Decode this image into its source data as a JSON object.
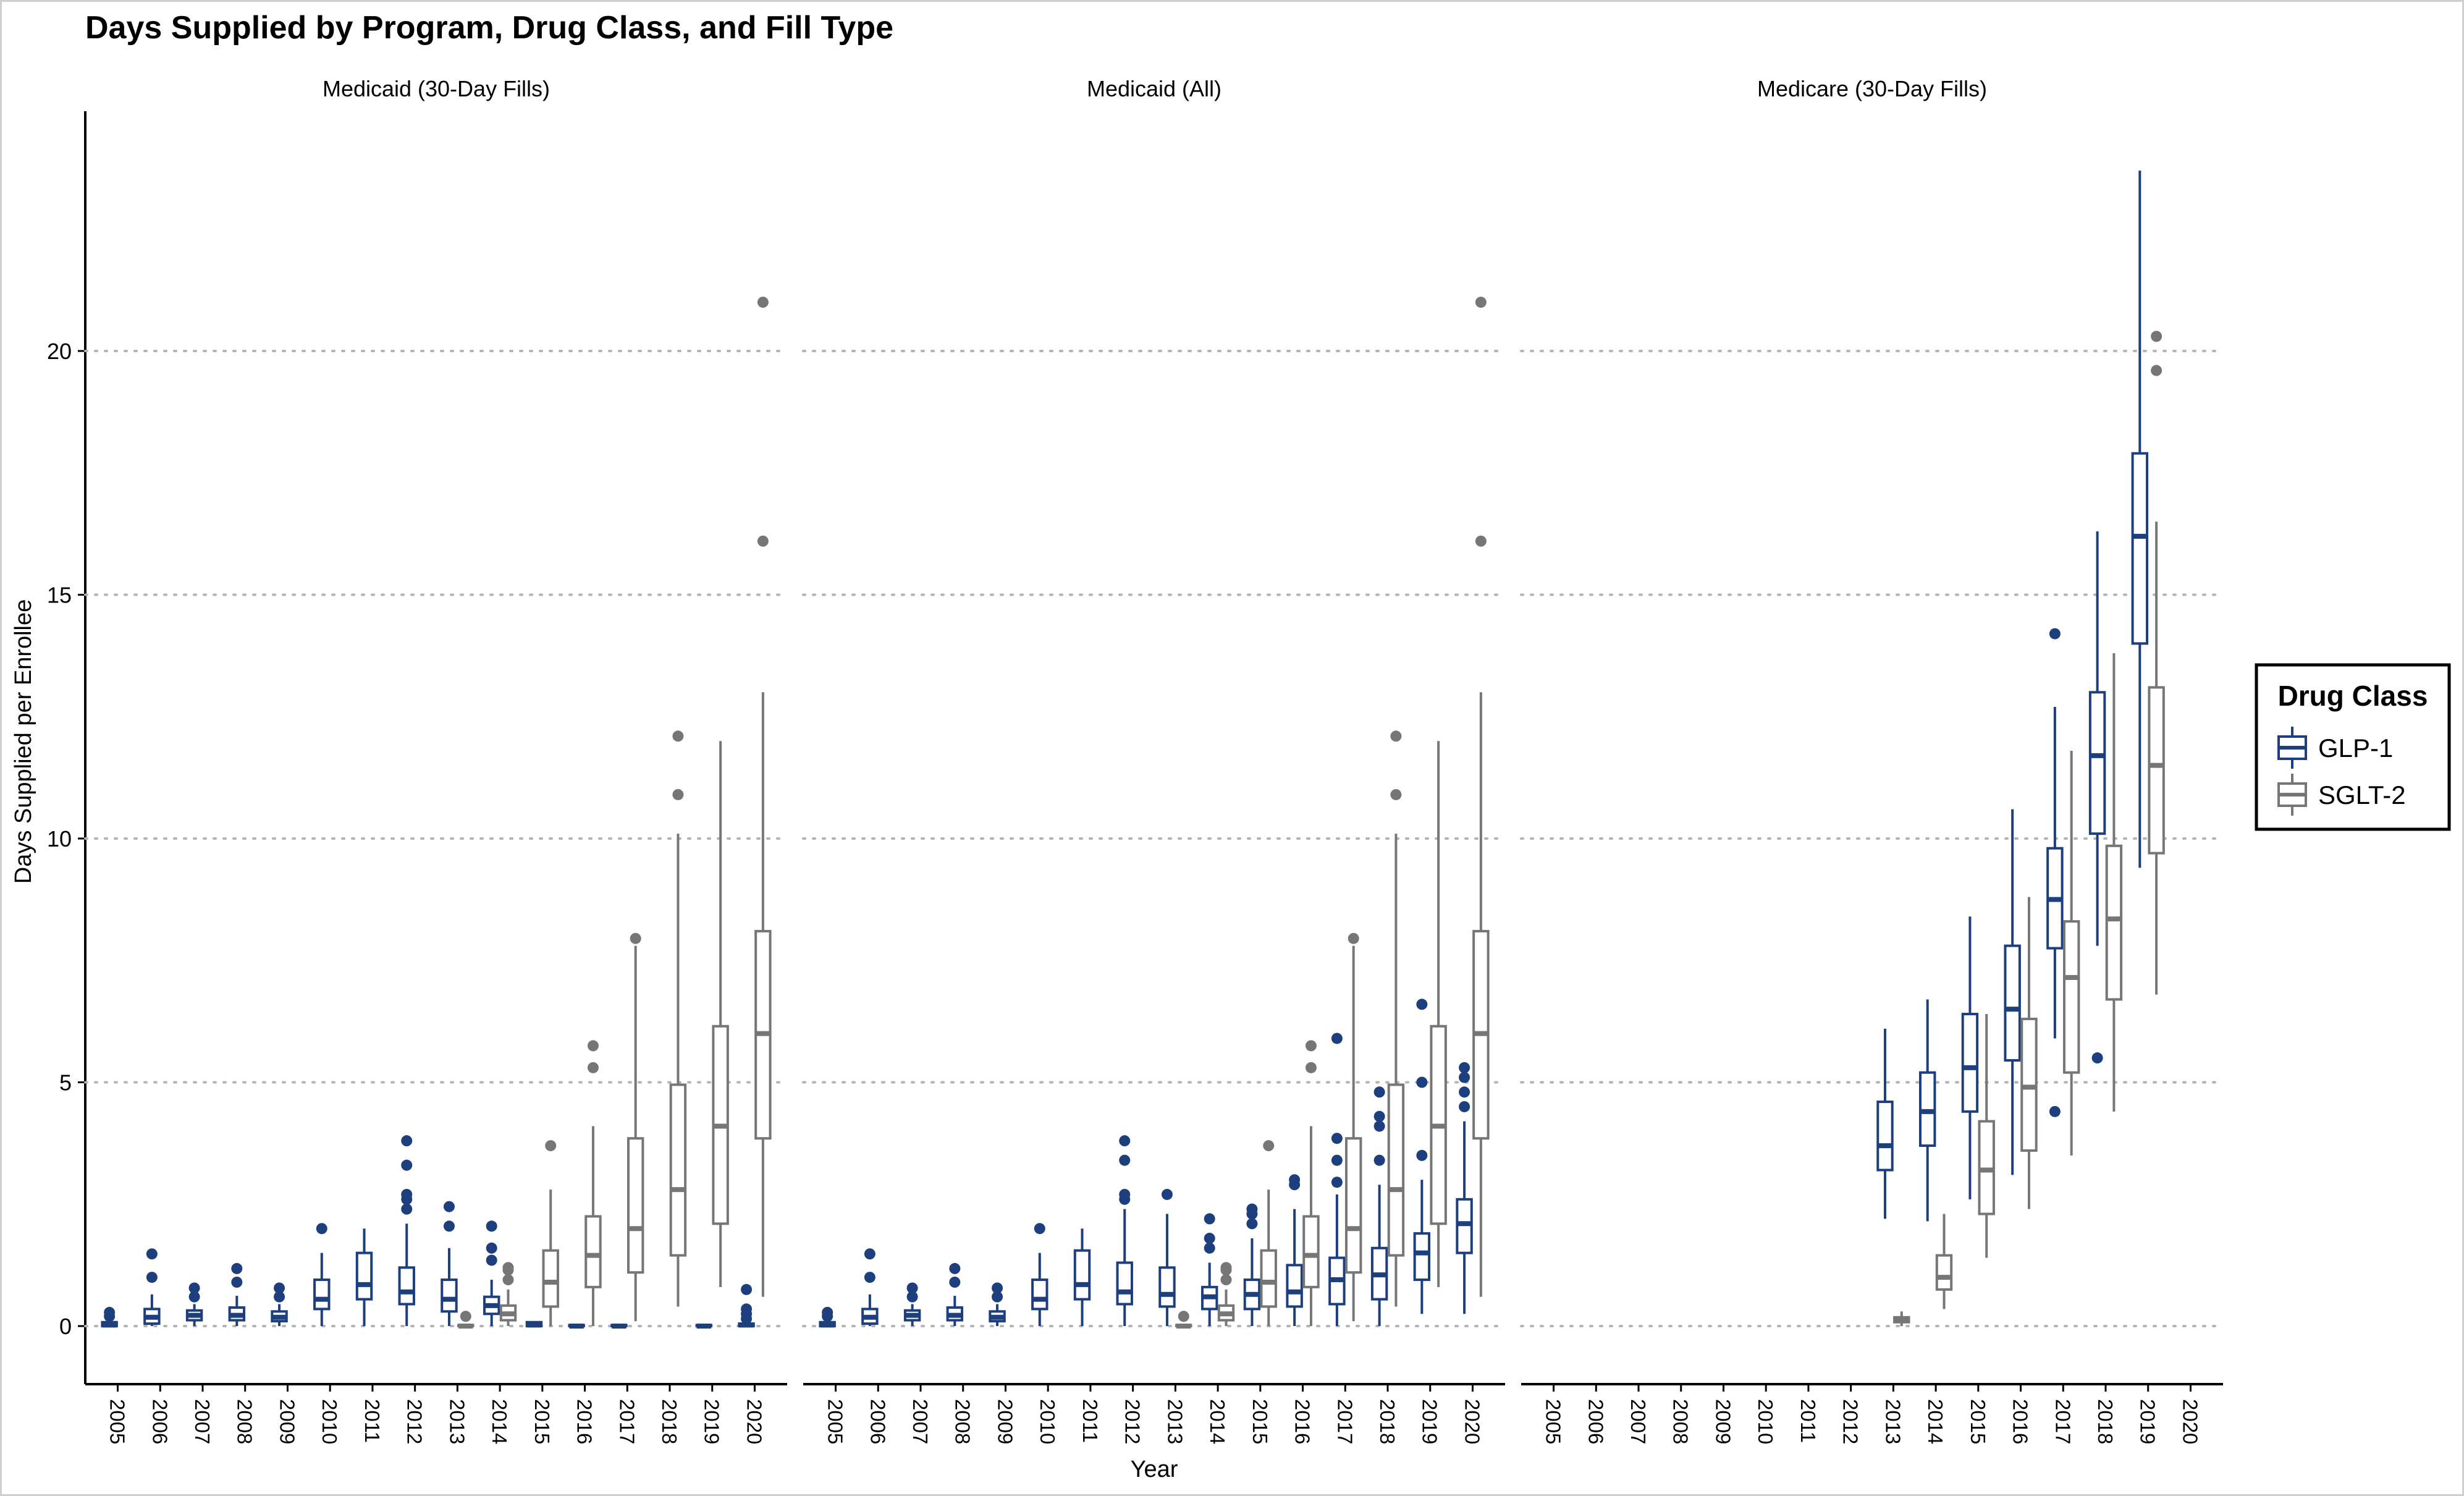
{
  "chart_data": {
    "type": "boxplot",
    "title": "Days Supplied by Program, Drug Class, and Fill Type",
    "xlabel": "Year",
    "ylabel": "Days Supplied per Enrollee",
    "ylim": [
      -1.2,
      24.9
    ],
    "yticks": [
      0,
      5,
      10,
      15,
      20
    ],
    "grid": "horizontal dotted",
    "legend": {
      "title": "Drug Class",
      "position": "right",
      "entries": [
        {
          "name": "GLP-1",
          "color": "#1d3f7e"
        },
        {
          "name": "SGLT-2",
          "color": "#767676"
        }
      ]
    },
    "years": [
      "2005",
      "2006",
      "2007",
      "2008",
      "2009",
      "2010",
      "2011",
      "2012",
      "2013",
      "2014",
      "2015",
      "2016",
      "2017",
      "2018",
      "2019",
      "2020"
    ],
    "panels": [
      {
        "title": "Medicaid (30-Day Fills)",
        "boxes": [
          {
            "year": "2005",
            "class": "GLP-1",
            "q1": 0.0,
            "median": 0.02,
            "q3": 0.08,
            "lo": 0.0,
            "hi": 0.12,
            "outliers": [
              0.2,
              0.28
            ]
          },
          {
            "year": "2006",
            "class": "GLP-1",
            "q1": 0.05,
            "median": 0.18,
            "q3": 0.35,
            "lo": 0.0,
            "hi": 0.65,
            "outliers": [
              1.0,
              1.48
            ]
          },
          {
            "year": "2007",
            "class": "GLP-1",
            "q1": 0.12,
            "median": 0.22,
            "q3": 0.32,
            "lo": 0.0,
            "hi": 0.45,
            "outliers": [
              0.6,
              0.78
            ]
          },
          {
            "year": "2008",
            "class": "GLP-1",
            "q1": 0.12,
            "median": 0.22,
            "q3": 0.38,
            "lo": 0.0,
            "hi": 0.62,
            "outliers": [
              0.9,
              1.18
            ]
          },
          {
            "year": "2009",
            "class": "GLP-1",
            "q1": 0.1,
            "median": 0.18,
            "q3": 0.3,
            "lo": 0.0,
            "hi": 0.45,
            "outliers": [
              0.6,
              0.78
            ]
          },
          {
            "year": "2010",
            "class": "GLP-1",
            "q1": 0.35,
            "median": 0.55,
            "q3": 0.95,
            "lo": 0.0,
            "hi": 1.5,
            "outliers": [
              2.0
            ]
          },
          {
            "year": "2011",
            "class": "GLP-1",
            "q1": 0.55,
            "median": 0.85,
            "q3": 1.5,
            "lo": 0.0,
            "hi": 2.0,
            "outliers": []
          },
          {
            "year": "2012",
            "class": "GLP-1",
            "q1": 0.45,
            "median": 0.7,
            "q3": 1.2,
            "lo": 0.0,
            "hi": 2.1,
            "outliers": [
              2.4,
              2.6,
              2.7,
              3.3,
              3.8
            ]
          },
          {
            "year": "2013",
            "class": "GLP-1",
            "q1": 0.3,
            "median": 0.55,
            "q3": 0.95,
            "lo": 0.0,
            "hi": 1.6,
            "outliers": [
              2.05,
              2.45
            ]
          },
          {
            "year": "2013",
            "class": "SGLT-2",
            "q1": 0.0,
            "median": 0.0,
            "q3": 0.02,
            "lo": 0.0,
            "hi": 0.05,
            "outliers": [
              0.2
            ]
          },
          {
            "year": "2014",
            "class": "GLP-1",
            "q1": 0.25,
            "median": 0.42,
            "q3": 0.6,
            "lo": 0.0,
            "hi": 0.95,
            "outliers": [
              1.35,
              1.6,
              2.05
            ]
          },
          {
            "year": "2014",
            "class": "SGLT-2",
            "q1": 0.12,
            "median": 0.25,
            "q3": 0.42,
            "lo": 0.0,
            "hi": 0.75,
            "outliers": [
              0.95,
              1.15,
              1.2
            ]
          },
          {
            "year": "2015",
            "class": "GLP-1",
            "q1": 0.0,
            "median": 0.02,
            "q3": 0.08,
            "lo": 0.0,
            "hi": 0.1,
            "outliers": []
          },
          {
            "year": "2015",
            "class": "SGLT-2",
            "q1": 0.4,
            "median": 0.9,
            "q3": 1.55,
            "lo": 0.0,
            "hi": 2.8,
            "outliers": [
              3.7
            ]
          },
          {
            "year": "2016",
            "class": "GLP-1",
            "q1": 0.0,
            "median": 0.0,
            "q3": 0.02,
            "lo": 0.0,
            "hi": 0.03,
            "outliers": []
          },
          {
            "year": "2016",
            "class": "SGLT-2",
            "q1": 0.8,
            "median": 1.45,
            "q3": 2.25,
            "lo": 0.0,
            "hi": 4.1,
            "outliers": [
              5.3,
              5.75
            ]
          },
          {
            "year": "2017",
            "class": "GLP-1",
            "q1": 0.0,
            "median": 0.0,
            "q3": 0.02,
            "lo": 0.0,
            "hi": 0.03,
            "outliers": []
          },
          {
            "year": "2017",
            "class": "SGLT-2",
            "q1": 1.1,
            "median": 2.0,
            "q3": 3.85,
            "lo": 0.1,
            "hi": 7.8,
            "outliers": [
              7.95
            ]
          },
          {
            "year": "2018",
            "class": "SGLT-2",
            "q1": 1.45,
            "median": 2.8,
            "q3": 4.95,
            "lo": 0.4,
            "hi": 10.1,
            "outliers": [
              10.9,
              12.1
            ]
          },
          {
            "year": "2019",
            "class": "GLP-1",
            "q1": 0.0,
            "median": 0.0,
            "q3": 0.02,
            "lo": 0.0,
            "hi": 0.03,
            "outliers": []
          },
          {
            "year": "2019",
            "class": "SGLT-2",
            "q1": 2.1,
            "median": 4.1,
            "q3": 6.15,
            "lo": 0.8,
            "hi": 12.0,
            "outliers": []
          },
          {
            "year": "2020",
            "class": "GLP-1",
            "q1": 0.0,
            "median": 0.02,
            "q3": 0.05,
            "lo": 0.0,
            "hi": 0.08,
            "outliers": [
              0.15,
              0.25,
              0.35,
              0.75
            ]
          },
          {
            "year": "2020",
            "class": "SGLT-2",
            "q1": 3.85,
            "median": 6.0,
            "q3": 8.1,
            "lo": 0.6,
            "hi": 13.0,
            "outliers": [
              16.1,
              21.0
            ]
          }
        ]
      },
      {
        "title": "Medicaid (All)",
        "boxes": [
          {
            "year": "2005",
            "class": "GLP-1",
            "q1": 0.0,
            "median": 0.02,
            "q3": 0.08,
            "lo": 0.0,
            "hi": 0.12,
            "outliers": [
              0.2,
              0.28
            ]
          },
          {
            "year": "2006",
            "class": "GLP-1",
            "q1": 0.05,
            "median": 0.18,
            "q3": 0.35,
            "lo": 0.0,
            "hi": 0.65,
            "outliers": [
              1.0,
              1.48
            ]
          },
          {
            "year": "2007",
            "class": "GLP-1",
            "q1": 0.12,
            "median": 0.22,
            "q3": 0.32,
            "lo": 0.0,
            "hi": 0.45,
            "outliers": [
              0.6,
              0.78
            ]
          },
          {
            "year": "2008",
            "class": "GLP-1",
            "q1": 0.12,
            "median": 0.22,
            "q3": 0.38,
            "lo": 0.0,
            "hi": 0.62,
            "outliers": [
              0.9,
              1.18
            ]
          },
          {
            "year": "2009",
            "class": "GLP-1",
            "q1": 0.1,
            "median": 0.18,
            "q3": 0.3,
            "lo": 0.0,
            "hi": 0.45,
            "outliers": [
              0.6,
              0.78
            ]
          },
          {
            "year": "2010",
            "class": "GLP-1",
            "q1": 0.35,
            "median": 0.55,
            "q3": 0.95,
            "lo": 0.0,
            "hi": 1.5,
            "outliers": [
              2.0
            ]
          },
          {
            "year": "2011",
            "class": "GLP-1",
            "q1": 0.55,
            "median": 0.85,
            "q3": 1.55,
            "lo": 0.0,
            "hi": 2.0,
            "outliers": []
          },
          {
            "year": "2012",
            "class": "GLP-1",
            "q1": 0.45,
            "median": 0.7,
            "q3": 1.3,
            "lo": 0.0,
            "hi": 2.4,
            "outliers": [
              2.6,
              2.7,
              3.4,
              3.8
            ]
          },
          {
            "year": "2013",
            "class": "GLP-1",
            "q1": 0.4,
            "median": 0.65,
            "q3": 1.2,
            "lo": 0.0,
            "hi": 2.3,
            "outliers": [
              2.7
            ]
          },
          {
            "year": "2013",
            "class": "SGLT-2",
            "q1": 0.0,
            "median": 0.0,
            "q3": 0.02,
            "lo": 0.0,
            "hi": 0.05,
            "outliers": [
              0.2
            ]
          },
          {
            "year": "2014",
            "class": "GLP-1",
            "q1": 0.35,
            "median": 0.6,
            "q3": 0.8,
            "lo": 0.0,
            "hi": 1.3,
            "outliers": [
              1.6,
              1.8,
              2.2
            ]
          },
          {
            "year": "2014",
            "class": "SGLT-2",
            "q1": 0.12,
            "median": 0.25,
            "q3": 0.42,
            "lo": 0.0,
            "hi": 0.75,
            "outliers": [
              0.95,
              1.15,
              1.2
            ]
          },
          {
            "year": "2015",
            "class": "GLP-1",
            "q1": 0.35,
            "median": 0.65,
            "q3": 0.95,
            "lo": 0.0,
            "hi": 1.8,
            "outliers": [
              2.1,
              2.3,
              2.4
            ]
          },
          {
            "year": "2015",
            "class": "SGLT-2",
            "q1": 0.4,
            "median": 0.9,
            "q3": 1.55,
            "lo": 0.0,
            "hi": 2.8,
            "outliers": [
              3.7
            ]
          },
          {
            "year": "2016",
            "class": "GLP-1",
            "q1": 0.4,
            "median": 0.7,
            "q3": 1.25,
            "lo": 0.0,
            "hi": 2.4,
            "outliers": [
              2.9,
              3.0
            ]
          },
          {
            "year": "2016",
            "class": "SGLT-2",
            "q1": 0.8,
            "median": 1.45,
            "q3": 2.25,
            "lo": 0.0,
            "hi": 4.1,
            "outliers": [
              5.3,
              5.75
            ]
          },
          {
            "year": "2017",
            "class": "GLP-1",
            "q1": 0.45,
            "median": 0.95,
            "q3": 1.4,
            "lo": 0.0,
            "hi": 2.7,
            "outliers": [
              2.95,
              3.4,
              3.85,
              5.9
            ]
          },
          {
            "year": "2017",
            "class": "SGLT-2",
            "q1": 1.1,
            "median": 2.0,
            "q3": 3.85,
            "lo": 0.1,
            "hi": 7.8,
            "outliers": [
              7.95
            ]
          },
          {
            "year": "2018",
            "class": "GLP-1",
            "q1": 0.55,
            "median": 1.05,
            "q3": 1.6,
            "lo": 0.0,
            "hi": 2.9,
            "outliers": [
              3.4,
              4.1,
              4.3,
              4.8
            ]
          },
          {
            "year": "2018",
            "class": "SGLT-2",
            "q1": 1.45,
            "median": 2.8,
            "q3": 4.95,
            "lo": 0.4,
            "hi": 10.1,
            "outliers": [
              10.9,
              12.1
            ]
          },
          {
            "year": "2019",
            "class": "GLP-1",
            "q1": 0.95,
            "median": 1.5,
            "q3": 1.9,
            "lo": 0.25,
            "hi": 3.0,
            "outliers": [
              3.5,
              5.0,
              6.6
            ]
          },
          {
            "year": "2019",
            "class": "SGLT-2",
            "q1": 2.1,
            "median": 4.1,
            "q3": 6.15,
            "lo": 0.8,
            "hi": 12.0,
            "outliers": []
          },
          {
            "year": "2020",
            "class": "GLP-1",
            "q1": 1.5,
            "median": 2.1,
            "q3": 2.6,
            "lo": 0.25,
            "hi": 4.2,
            "outliers": [
              4.5,
              4.8,
              5.1,
              5.3
            ]
          },
          {
            "year": "2020",
            "class": "SGLT-2",
            "q1": 3.85,
            "median": 6.0,
            "q3": 8.1,
            "lo": 0.6,
            "hi": 13.0,
            "outliers": [
              16.1,
              21.0
            ]
          }
        ]
      },
      {
        "title": "Medicare (30-Day Fills)",
        "boxes": [
          {
            "year": "2013",
            "class": "GLP-1",
            "q1": 3.2,
            "median": 3.7,
            "q3": 4.6,
            "lo": 2.2,
            "hi": 6.1,
            "outliers": []
          },
          {
            "year": "2013",
            "class": "SGLT-2",
            "q1": 0.08,
            "median": 0.12,
            "q3": 0.18,
            "lo": 0.0,
            "hi": 0.3,
            "outliers": []
          },
          {
            "year": "2014",
            "class": "GLP-1",
            "q1": 3.7,
            "median": 4.4,
            "q3": 5.2,
            "lo": 2.15,
            "hi": 6.7,
            "outliers": []
          },
          {
            "year": "2014",
            "class": "SGLT-2",
            "q1": 0.75,
            "median": 1.0,
            "q3": 1.45,
            "lo": 0.35,
            "hi": 2.3,
            "outliers": []
          },
          {
            "year": "2015",
            "class": "GLP-1",
            "q1": 4.4,
            "median": 5.3,
            "q3": 6.4,
            "lo": 2.6,
            "hi": 8.4,
            "outliers": []
          },
          {
            "year": "2015",
            "class": "SGLT-2",
            "q1": 2.3,
            "median": 3.2,
            "q3": 4.2,
            "lo": 1.4,
            "hi": 6.4,
            "outliers": []
          },
          {
            "year": "2016",
            "class": "GLP-1",
            "q1": 5.45,
            "median": 6.5,
            "q3": 7.8,
            "lo": 3.1,
            "hi": 10.6,
            "outliers": []
          },
          {
            "year": "2016",
            "class": "SGLT-2",
            "q1": 3.6,
            "median": 4.9,
            "q3": 6.3,
            "lo": 2.4,
            "hi": 8.8,
            "outliers": []
          },
          {
            "year": "2017",
            "class": "GLP-1",
            "q1": 7.75,
            "median": 8.75,
            "q3": 9.8,
            "lo": 5.9,
            "hi": 12.7,
            "outliers": [
              4.4,
              14.2
            ]
          },
          {
            "year": "2017",
            "class": "SGLT-2",
            "q1": 5.2,
            "median": 7.15,
            "q3": 8.3,
            "lo": 3.5,
            "hi": 11.8,
            "outliers": []
          },
          {
            "year": "2018",
            "class": "GLP-1",
            "q1": 10.1,
            "median": 11.7,
            "q3": 13.0,
            "lo": 7.8,
            "hi": 16.3,
            "outliers": [
              5.5
            ]
          },
          {
            "year": "2018",
            "class": "SGLT-2",
            "q1": 6.7,
            "median": 8.35,
            "q3": 9.85,
            "lo": 4.4,
            "hi": 13.8,
            "outliers": []
          },
          {
            "year": "2019",
            "class": "GLP-1",
            "q1": 14.0,
            "median": 16.2,
            "q3": 17.9,
            "lo": 9.4,
            "hi": 23.7,
            "outliers": []
          },
          {
            "year": "2019",
            "class": "SGLT-2",
            "q1": 9.7,
            "median": 11.5,
            "q3": 13.1,
            "lo": 6.8,
            "hi": 16.5,
            "outliers": [
              19.6,
              20.3
            ]
          }
        ]
      }
    ]
  }
}
